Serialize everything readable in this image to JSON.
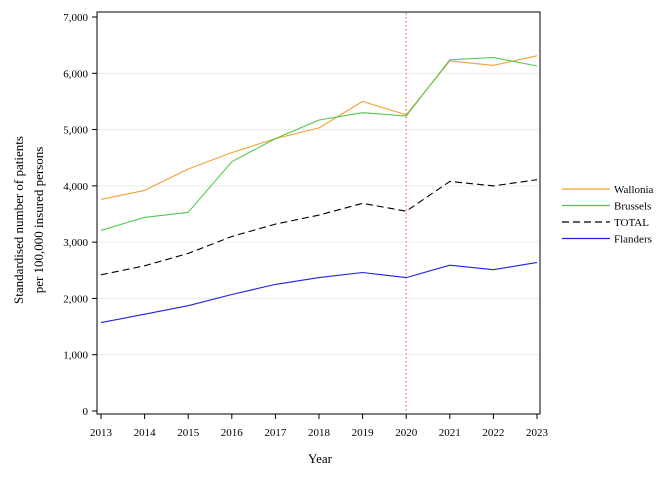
{
  "chart_data": {
    "type": "line",
    "title": "",
    "xlabel": "Year",
    "ylabel_lines": [
      "Standardised number of patients",
      "per 100,000 insured persons"
    ],
    "x": [
      2013,
      2014,
      2015,
      2016,
      2017,
      2018,
      2019,
      2020,
      2021,
      2022,
      2023
    ],
    "x_tick_labels": [
      "2013",
      "2014",
      "2015",
      "2016",
      "2017",
      "2018",
      "2019",
      "2020",
      "2021",
      "2022",
      "2023"
    ],
    "ylim": [
      0,
      7000
    ],
    "y_tick_values": [
      0,
      1000,
      2000,
      3000,
      4000,
      5000,
      6000,
      7000
    ],
    "y_tick_labels": [
      "0",
      "1,000",
      "2,000",
      "3,000",
      "4,000",
      "5,000",
      "6,000",
      "7,000"
    ],
    "grid": "horizontal",
    "reference_line": {
      "x": 2020,
      "color": "#e05060",
      "style": "dotted"
    },
    "legend_position": "right",
    "series": [
      {
        "name": "Wallonia",
        "color": "#f5a030",
        "dash": "solid",
        "values": [
          3760,
          3920,
          4300,
          4590,
          4840,
          5030,
          5500,
          5260,
          6220,
          6140,
          6310
        ]
      },
      {
        "name": "Brussels",
        "color": "#50c850",
        "dash": "solid",
        "values": [
          3210,
          3440,
          3530,
          4430,
          4840,
          5170,
          5300,
          5240,
          6240,
          6280,
          6130
        ]
      },
      {
        "name": "TOTAL",
        "color": "#000000",
        "dash": "dashed",
        "values": [
          2420,
          2580,
          2800,
          3100,
          3320,
          3480,
          3690,
          3550,
          4080,
          4000,
          4110
        ]
      },
      {
        "name": "Flanders",
        "color": "#2020e0",
        "dash": "solid",
        "values": [
          1570,
          1720,
          1870,
          2070,
          2250,
          2370,
          2460,
          2370,
          2590,
          2510,
          2640
        ]
      }
    ]
  }
}
